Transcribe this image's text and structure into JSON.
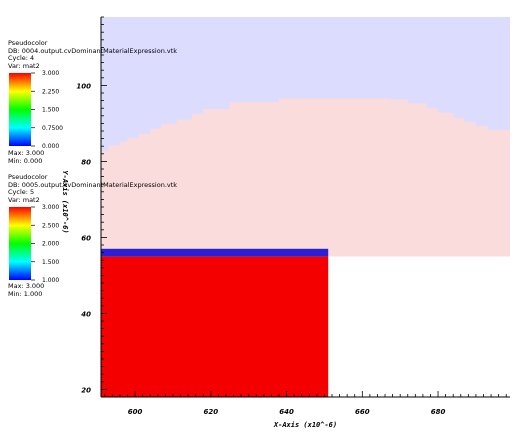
{
  "chart_data": {
    "type": "heatmap",
    "title": "",
    "xlabel": "X-Axis (x10^-6)",
    "ylabel": "Y-Axis (x10^-6)",
    "xlim": [
      591,
      699
    ],
    "ylim": [
      18,
      118
    ],
    "xticks": [
      600,
      620,
      640,
      660,
      680
    ],
    "yticks": [
      20,
      40,
      60,
      80,
      100
    ],
    "grid": false,
    "colors": {
      "lavender": "#dcdcff",
      "pink": "#fbdcdc",
      "blue": "#2b1fd8",
      "red": "#f50000",
      "white": "#ffffff"
    },
    "layer1": {
      "pink_upper_boundary": [
        [
          591,
          82.8
        ],
        [
          593,
          84.2
        ],
        [
          596,
          85.2
        ],
        [
          598,
          86.2
        ],
        [
          601,
          87.2
        ],
        [
          604,
          88.6
        ],
        [
          607,
          89.9
        ],
        [
          611,
          91.0
        ],
        [
          615,
          92.5
        ],
        [
          618,
          93.8
        ],
        [
          625,
          95.6
        ],
        [
          638,
          96.6
        ],
        [
          660,
          96.6
        ],
        [
          667,
          96.3
        ],
        [
          672,
          95.3
        ],
        [
          677,
          94.0
        ],
        [
          680,
          92.8
        ],
        [
          684,
          91.5
        ],
        [
          687,
          90.3
        ],
        [
          690,
          89.3
        ],
        [
          693,
          88.3
        ],
        [
          699,
          88.3
        ]
      ],
      "pink_bottom": 55.0
    },
    "layer2": {
      "blue_band": {
        "x": [
          591,
          651
        ],
        "y": [
          55.0,
          57.0
        ]
      },
      "red_block": {
        "x": [
          591,
          651
        ],
        "y": [
          18,
          55.0
        ]
      }
    },
    "legends": [
      {
        "plot_type": "Pseudocolor",
        "db": "DB: 0004.output.cvDominantMaterialExpression.vtk",
        "cycle": "Cycle: 4",
        "var": "Var: mat2",
        "ticks": [
          "3.000",
          "2.250",
          "1.500",
          "0.7500",
          "0.000"
        ],
        "min_value": 0.0,
        "max_value": 3.0,
        "max": "Max: 3.000",
        "min": "Min: 0.000"
      },
      {
        "plot_type": "Pseudocolor",
        "db": "DB: 0005.output.cvDominantMaterialExpression.vtk",
        "cycle": "Cycle: 5",
        "var": "Var: mat2",
        "ticks": [
          "3.000",
          "2.500",
          "2.000",
          "1.500",
          "1.000"
        ],
        "min_value": 1.0,
        "max_value": 3.0,
        "max": "Max: 3.000",
        "min": "Min: 1.000"
      }
    ]
  }
}
